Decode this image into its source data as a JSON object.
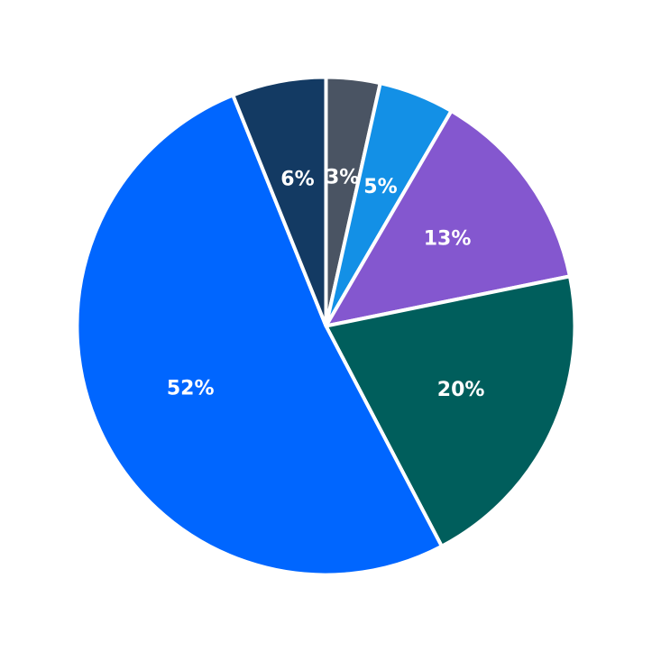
{
  "chart_data": {
    "type": "pie",
    "title": "",
    "legend": "none",
    "start_angle_deg": 90,
    "direction": "clockwise",
    "slices": [
      {
        "label": "3%",
        "value": 3.5,
        "color": "#4A5463"
      },
      {
        "label": "5%",
        "value": 4.9,
        "color": "#1390E6"
      },
      {
        "label": "13%",
        "value": 13.4,
        "color": "#8457CF"
      },
      {
        "label": "20%",
        "value": 20.5,
        "color": "#005E5C"
      },
      {
        "label": "52%",
        "value": 51.6,
        "color": "#0066FF"
      },
      {
        "label": "6%",
        "value": 6.1,
        "color": "#133A63"
      }
    ]
  }
}
